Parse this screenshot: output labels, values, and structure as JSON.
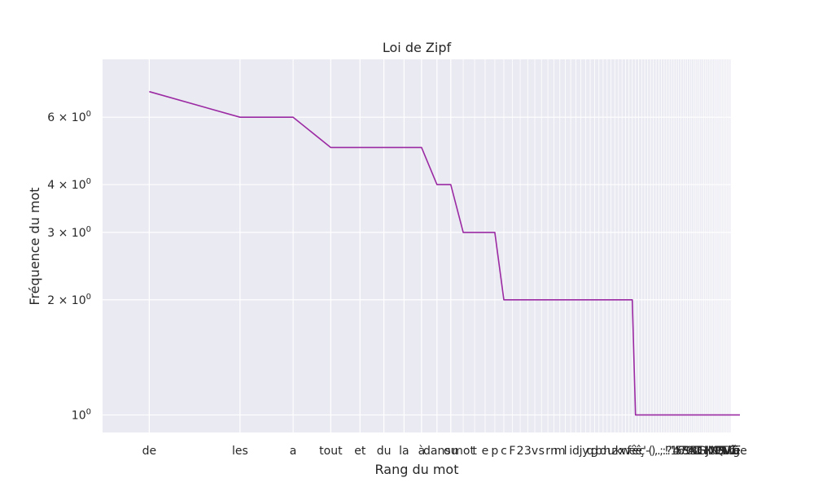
{
  "chart_data": {
    "type": "line",
    "title": "Loi de Zipf",
    "xlabel": "Rang du mot",
    "ylabel": "Fréquence du mot",
    "x_scale": "log",
    "y_scale": "log",
    "x_range": [
      0.7,
      85
    ],
    "y_range": [
      0.9,
      8.5
    ],
    "grid": true,
    "legend": "none",
    "colors": {
      "background": "#eaeaf2",
      "grid": "#ffffff",
      "line": "#9b2aa3",
      "text": "#262626"
    },
    "y_ticks": [
      {
        "value": 1,
        "base": "10",
        "exp": "0"
      },
      {
        "value": 2,
        "base": "2 × 10",
        "exp": "0"
      },
      {
        "value": 3,
        "base": "3 × 10",
        "exp": "0"
      },
      {
        "value": 4,
        "base": "4 × 10",
        "exp": "0"
      },
      {
        "value": 6,
        "base": "6 × 10",
        "exp": "0"
      }
    ],
    "words": [
      "de",
      "les",
      "a",
      "tout",
      "et",
      "du",
      "la",
      "à",
      "dans",
      "ou",
      "mot",
      "t",
      "e",
      "p",
      "c",
      "F",
      "2",
      "3",
      "v",
      "s",
      "r",
      "n",
      "m",
      "l",
      "i",
      "d",
      "j",
      "y",
      "q",
      "g",
      "b",
      "o",
      "h",
      "u",
      "z",
      "k",
      "x",
      "w",
      "f",
      "é",
      "è",
      "ê",
      "ç",
      "'",
      "-",
      "(",
      ")",
      ",",
      ".",
      ";",
      ":",
      "!",
      "?",
      "\"",
      "1",
      "4",
      "5",
      "6",
      "7",
      "8",
      "9",
      "0",
      "A",
      "B",
      "C",
      "D",
      "E",
      "G",
      "H",
      "I",
      "J",
      "K",
      "L",
      "M",
      "N",
      "O",
      "P",
      "Q",
      "R",
      "S",
      "T",
      "U",
      "V",
      "W",
      "ü",
      "ô",
      "î",
      "û",
      "ë",
      "ï",
      "ge"
    ],
    "frequencies": [
      7,
      6,
      6,
      5,
      5,
      5,
      5,
      5,
      4,
      4,
      3,
      3,
      3,
      3,
      2,
      2,
      2,
      2,
      2,
      2,
      2,
      2,
      2,
      2,
      2,
      2,
      2,
      2,
      2,
      2,
      2,
      2,
      2,
      2,
      2,
      2,
      2,
      2,
      2,
      2,
      1,
      1,
      1,
      1,
      1,
      1,
      1,
      1,
      1,
      1,
      1,
      1,
      1,
      1,
      1,
      1,
      1,
      1,
      1,
      1,
      1,
      1,
      1,
      1,
      1,
      1,
      1,
      1,
      1,
      1,
      1,
      1,
      1,
      1,
      1,
      1,
      1,
      1,
      1,
      1,
      1,
      1,
      1,
      1,
      1,
      1,
      1,
      1,
      1,
      1,
      1
    ]
  }
}
